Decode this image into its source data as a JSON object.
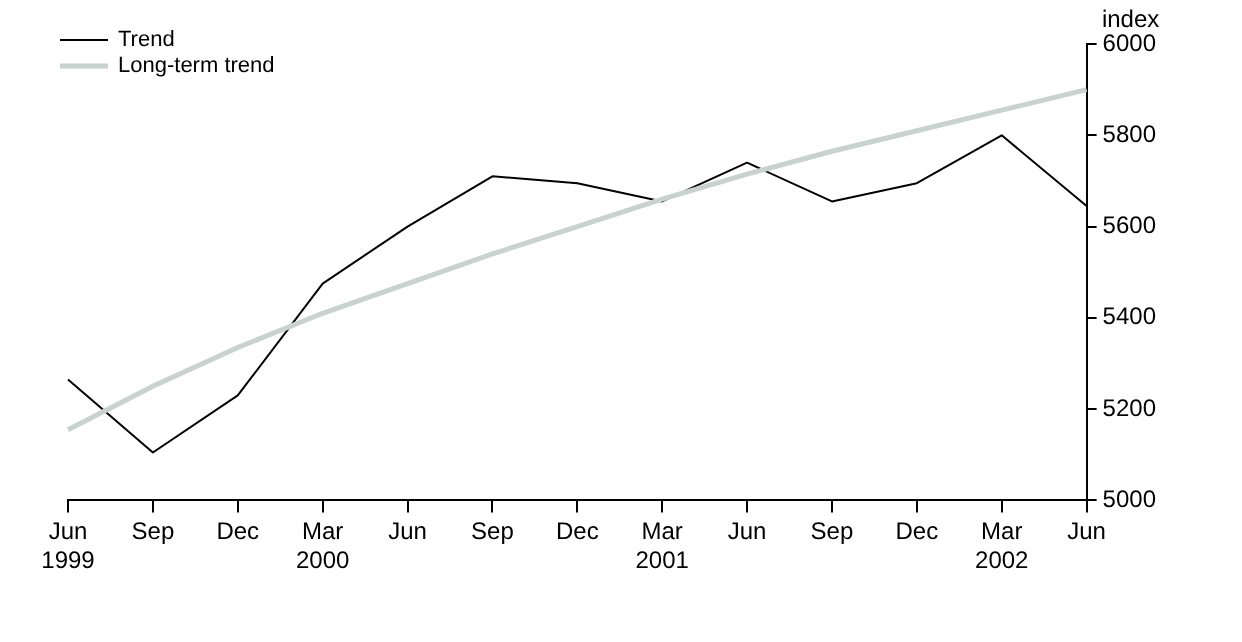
{
  "chart_data": {
    "type": "line",
    "ylabel": "index",
    "categories": [
      "Jun\n1999",
      "Sep",
      "Dec",
      "Mar\n2000",
      "Jun",
      "Sep",
      "Dec",
      "Mar\n2001",
      "Jun",
      "Sep",
      "Dec",
      "Mar\n2002",
      "Jun"
    ],
    "series": [
      {
        "name": "Trend",
        "color": "#000000",
        "values": [
          5265,
          5105,
          5230,
          5475,
          5600,
          5710,
          5695,
          5655,
          5740,
          5655,
          5695,
          5800,
          5645
        ]
      },
      {
        "name": "Long-term trend",
        "color": "#c8d2d0",
        "values": [
          5155,
          5250,
          5335,
          5410,
          5475,
          5540,
          5600,
          5660,
          5715,
          5765,
          5810,
          5855,
          5900
        ]
      }
    ],
    "ylim": [
      5000,
      6000
    ],
    "yticks": [
      5000,
      5200,
      5400,
      5600,
      5800,
      6000
    ],
    "grid": false,
    "legend": "top left",
    "marker": "none",
    "line_style": "solid"
  }
}
